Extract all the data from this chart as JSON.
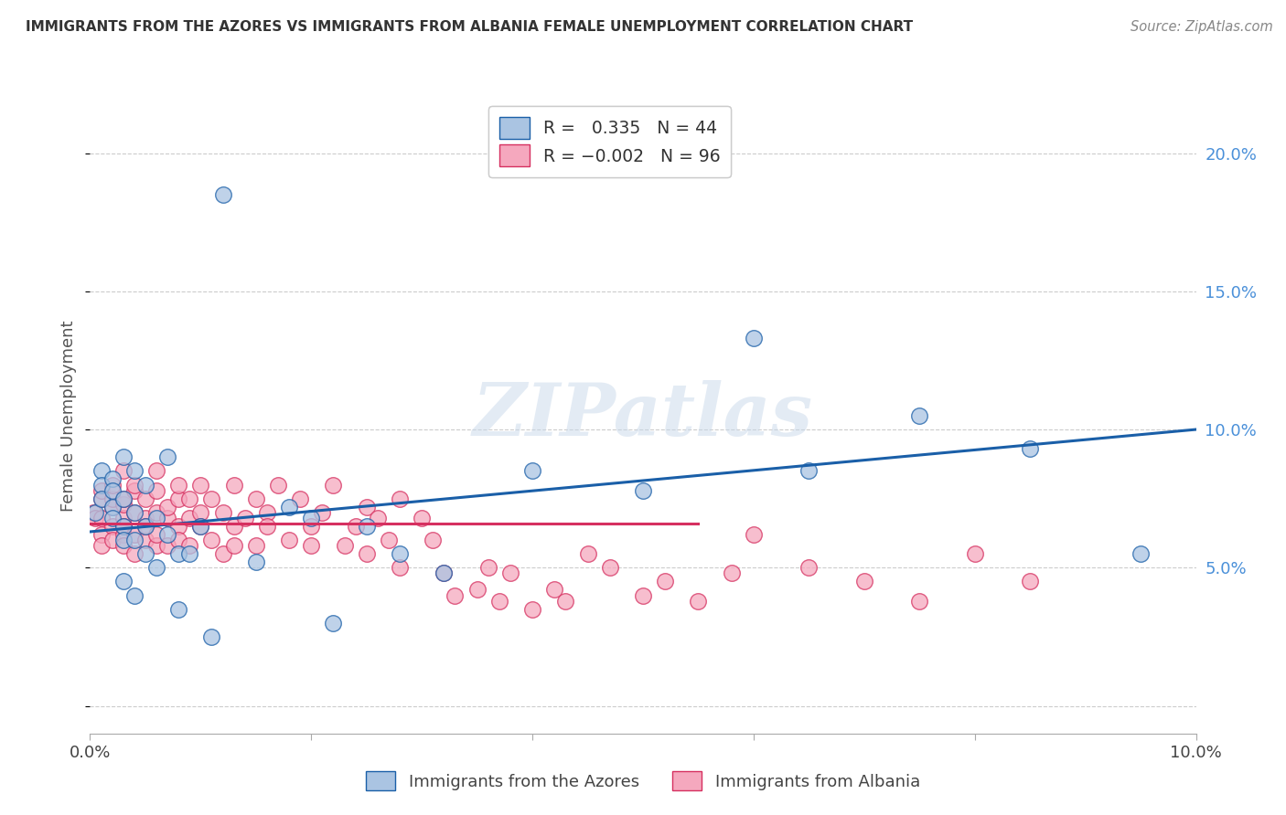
{
  "title": "IMMIGRANTS FROM THE AZORES VS IMMIGRANTS FROM ALBANIA FEMALE UNEMPLOYMENT CORRELATION CHART",
  "source": "Source: ZipAtlas.com",
  "ylabel": "Female Unemployment",
  "watermark": "ZIPatlas",
  "xlim": [
    0.0,
    0.1
  ],
  "ylim": [
    -0.01,
    0.22
  ],
  "yticks": [
    0.0,
    0.05,
    0.1,
    0.15,
    0.2
  ],
  "ytick_labels": [
    "",
    "5.0%",
    "10.0%",
    "15.0%",
    "20.0%"
  ],
  "xtick_labels": [
    "0.0%",
    "",
    "",
    "",
    "",
    "10.0%"
  ],
  "legend_azores": "Immigrants from the Azores",
  "legend_albania": "Immigrants from Albania",
  "R_azores": 0.335,
  "N_azores": 44,
  "R_albania": -0.002,
  "N_albania": 96,
  "color_azores": "#aac4e2",
  "color_albania": "#f5a8be",
  "line_azores": "#1a5fa8",
  "line_albania": "#d63060",
  "background_color": "#ffffff",
  "azores_line_x0": 0.0,
  "azores_line_x1": 0.1,
  "azores_line_y0": 0.063,
  "azores_line_y1": 0.1,
  "albania_line_x0": 0.0,
  "albania_line_x1": 0.055,
  "albania_line_y0": 0.066,
  "albania_line_y1": 0.066,
  "azores_x": [
    0.0005,
    0.001,
    0.001,
    0.001,
    0.002,
    0.002,
    0.002,
    0.002,
    0.003,
    0.003,
    0.003,
    0.003,
    0.003,
    0.004,
    0.004,
    0.004,
    0.004,
    0.005,
    0.005,
    0.005,
    0.006,
    0.006,
    0.007,
    0.007,
    0.008,
    0.008,
    0.009,
    0.01,
    0.011,
    0.012,
    0.015,
    0.018,
    0.02,
    0.022,
    0.025,
    0.028,
    0.032,
    0.04,
    0.05,
    0.06,
    0.065,
    0.075,
    0.085,
    0.095
  ],
  "azores_y": [
    0.07,
    0.085,
    0.08,
    0.075,
    0.082,
    0.072,
    0.078,
    0.068,
    0.09,
    0.065,
    0.075,
    0.06,
    0.045,
    0.085,
    0.07,
    0.06,
    0.04,
    0.08,
    0.065,
    0.055,
    0.068,
    0.05,
    0.09,
    0.062,
    0.055,
    0.035,
    0.055,
    0.065,
    0.025,
    0.185,
    0.052,
    0.072,
    0.068,
    0.03,
    0.065,
    0.055,
    0.048,
    0.085,
    0.078,
    0.133,
    0.085,
    0.105,
    0.093,
    0.055
  ],
  "albania_x": [
    0.0003,
    0.0005,
    0.001,
    0.001,
    0.001,
    0.001,
    0.001,
    0.002,
    0.002,
    0.002,
    0.002,
    0.002,
    0.003,
    0.003,
    0.003,
    0.003,
    0.003,
    0.003,
    0.003,
    0.004,
    0.004,
    0.004,
    0.004,
    0.004,
    0.005,
    0.005,
    0.005,
    0.005,
    0.006,
    0.006,
    0.006,
    0.006,
    0.006,
    0.007,
    0.007,
    0.007,
    0.008,
    0.008,
    0.008,
    0.008,
    0.009,
    0.009,
    0.009,
    0.01,
    0.01,
    0.01,
    0.011,
    0.011,
    0.012,
    0.012,
    0.013,
    0.013,
    0.013,
    0.014,
    0.015,
    0.015,
    0.016,
    0.016,
    0.017,
    0.018,
    0.019,
    0.02,
    0.02,
    0.021,
    0.022,
    0.023,
    0.024,
    0.025,
    0.025,
    0.026,
    0.027,
    0.028,
    0.028,
    0.03,
    0.031,
    0.032,
    0.033,
    0.035,
    0.036,
    0.037,
    0.038,
    0.04,
    0.042,
    0.043,
    0.045,
    0.047,
    0.05,
    0.052,
    0.055,
    0.058,
    0.06,
    0.065,
    0.07,
    0.075,
    0.08,
    0.085
  ],
  "albania_y": [
    0.07,
    0.068,
    0.075,
    0.068,
    0.062,
    0.058,
    0.078,
    0.072,
    0.065,
    0.06,
    0.075,
    0.08,
    0.068,
    0.073,
    0.062,
    0.058,
    0.075,
    0.065,
    0.085,
    0.07,
    0.078,
    0.062,
    0.055,
    0.08,
    0.068,
    0.075,
    0.06,
    0.065,
    0.07,
    0.058,
    0.078,
    0.062,
    0.085,
    0.068,
    0.072,
    0.058,
    0.075,
    0.065,
    0.06,
    0.08,
    0.068,
    0.075,
    0.058,
    0.07,
    0.065,
    0.08,
    0.06,
    0.075,
    0.055,
    0.07,
    0.065,
    0.08,
    0.058,
    0.068,
    0.075,
    0.058,
    0.07,
    0.065,
    0.08,
    0.06,
    0.075,
    0.065,
    0.058,
    0.07,
    0.08,
    0.058,
    0.065,
    0.072,
    0.055,
    0.068,
    0.06,
    0.075,
    0.05,
    0.068,
    0.06,
    0.048,
    0.04,
    0.042,
    0.05,
    0.038,
    0.048,
    0.035,
    0.042,
    0.038,
    0.055,
    0.05,
    0.04,
    0.045,
    0.038,
    0.048,
    0.062,
    0.05,
    0.045,
    0.038,
    0.055,
    0.045
  ]
}
